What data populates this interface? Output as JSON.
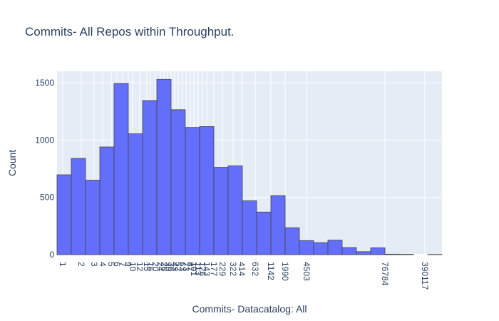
{
  "chart_data": {
    "type": "bar",
    "title": "Commits- All Repos within Throughput.",
    "xlabel": "Commits- Datacatalog: All",
    "ylabel": "Count",
    "ylim": [
      0,
      1600
    ],
    "yticks": [
      0,
      500,
      1000,
      1500
    ],
    "grid": true,
    "bar_color": "#636efa",
    "bar_edge_color": "#444444",
    "plot_bg": "#e5ecf6",
    "values": [
      697,
      840,
      650,
      940,
      1495,
      1055,
      1345,
      1530,
      1265,
      1110,
      1118,
      762,
      775,
      470,
      372,
      515,
      235,
      123,
      105,
      127,
      62,
      26,
      60,
      4,
      3,
      0,
      2
    ],
    "x_tick_labels": [
      {
        "label": "1",
        "bin": 0.4
      },
      {
        "label": "2",
        "bin": 1.7
      },
      {
        "label": "3",
        "bin": 2.6
      },
      {
        "label": "4",
        "bin": 3.2
      },
      {
        "label": "5",
        "bin": 3.8
      },
      {
        "label": "6",
        "bin": 4.2
      },
      {
        "label": "7",
        "bin": 4.6
      },
      {
        "label": "9",
        "bin": 5.0
      },
      {
        "label": "10",
        "bin": 5.3
      },
      {
        "label": "12",
        "bin": 5.8
      },
      {
        "label": "15",
        "bin": 6.3
      },
      {
        "label": "16",
        "bin": 6.55
      },
      {
        "label": "20",
        "bin": 6.9
      },
      {
        "label": "24",
        "bin": 7.25
      },
      {
        "label": "26",
        "bin": 7.5
      },
      {
        "label": "30",
        "bin": 7.75
      },
      {
        "label": "36",
        "bin": 8.0
      },
      {
        "label": "43",
        "bin": 8.25
      },
      {
        "label": "52",
        "bin": 8.5
      },
      {
        "label": "63",
        "bin": 8.8
      },
      {
        "label": "73",
        "bin": 9.05
      },
      {
        "label": "87",
        "bin": 9.35
      },
      {
        "label": "101",
        "bin": 9.6
      },
      {
        "label": "113",
        "bin": 9.9
      },
      {
        "label": "126",
        "bin": 10.2
      },
      {
        "label": "143",
        "bin": 10.5
      },
      {
        "label": "177",
        "bin": 11.0
      },
      {
        "label": "229",
        "bin": 11.6
      },
      {
        "label": "322",
        "bin": 12.35
      },
      {
        "label": "414",
        "bin": 12.95
      },
      {
        "label": "632",
        "bin": 13.9
      },
      {
        "label": "1142",
        "bin": 15.0
      },
      {
        "label": "1990",
        "bin": 16.0
      },
      {
        "label": "4503",
        "bin": 17.5
      },
      {
        "label": "76784",
        "bin": 23.0
      },
      {
        "label": "390117",
        "bin": 25.8
      }
    ]
  }
}
